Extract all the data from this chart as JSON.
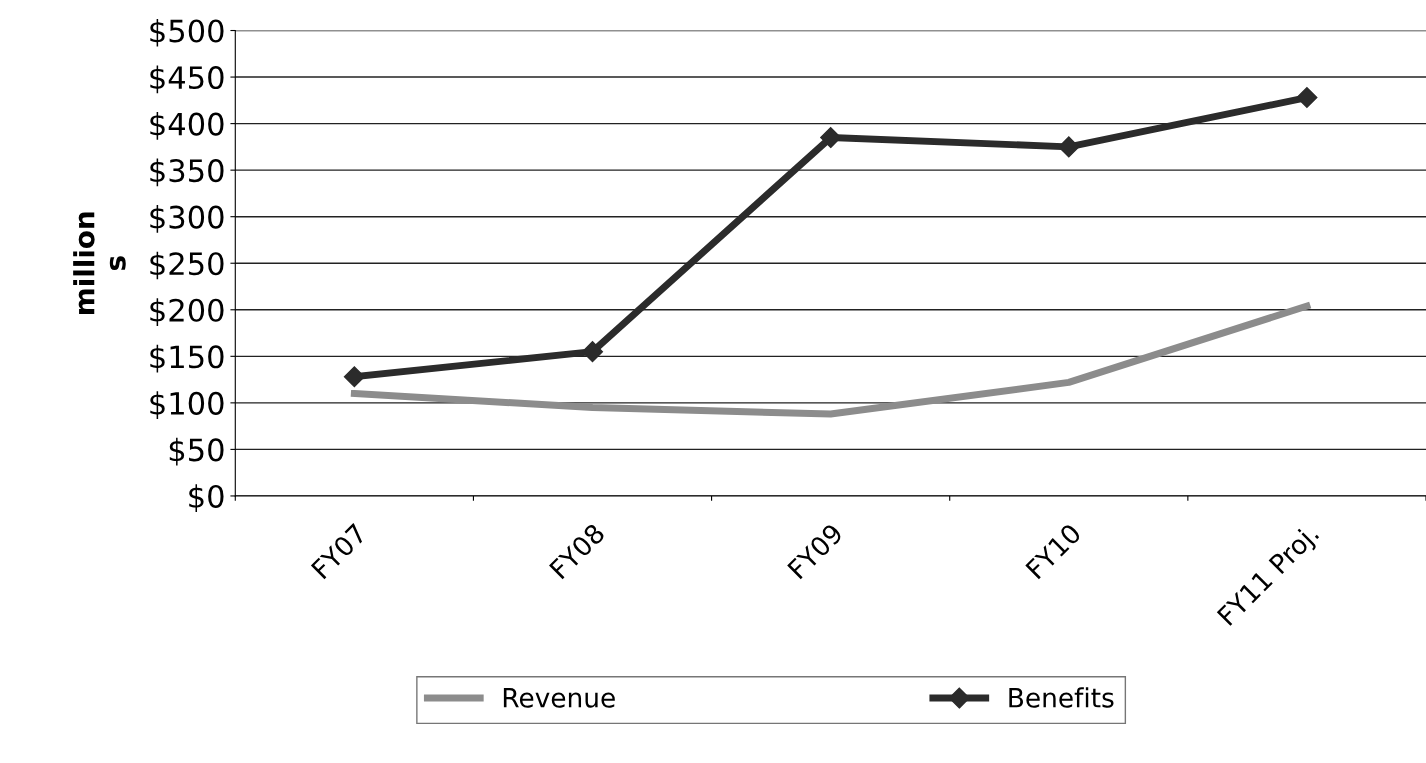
{
  "chart_data": {
    "type": "line",
    "ylabel": "million\ns",
    "categories": [
      "FY07",
      "FY08",
      "FY09",
      "FY10",
      "FY11 Proj."
    ],
    "series": [
      {
        "name": "Revenue",
        "color": "#8c8c8c",
        "marker": "none",
        "values": [
          110,
          95,
          88,
          122,
          204
        ]
      },
      {
        "name": "Benefits",
        "color": "#2b2b2b",
        "marker": "diamond",
        "values": [
          128,
          155,
          385,
          375,
          428
        ]
      }
    ],
    "ylim": [
      0,
      500
    ],
    "yticks": [
      {
        "value": 0,
        "label": "$0"
      },
      {
        "value": 50,
        "label": "$50"
      },
      {
        "value": 100,
        "label": "$100"
      },
      {
        "value": 150,
        "label": "$150"
      },
      {
        "value": 200,
        "label": "$200"
      },
      {
        "value": 250,
        "label": "$250"
      },
      {
        "value": 300,
        "label": "$300"
      },
      {
        "value": 350,
        "label": "$350"
      },
      {
        "value": 400,
        "label": "$400"
      },
      {
        "value": 450,
        "label": "$450"
      },
      {
        "value": 500,
        "label": "$500"
      }
    ],
    "grid": "y",
    "legend": "bottom"
  }
}
